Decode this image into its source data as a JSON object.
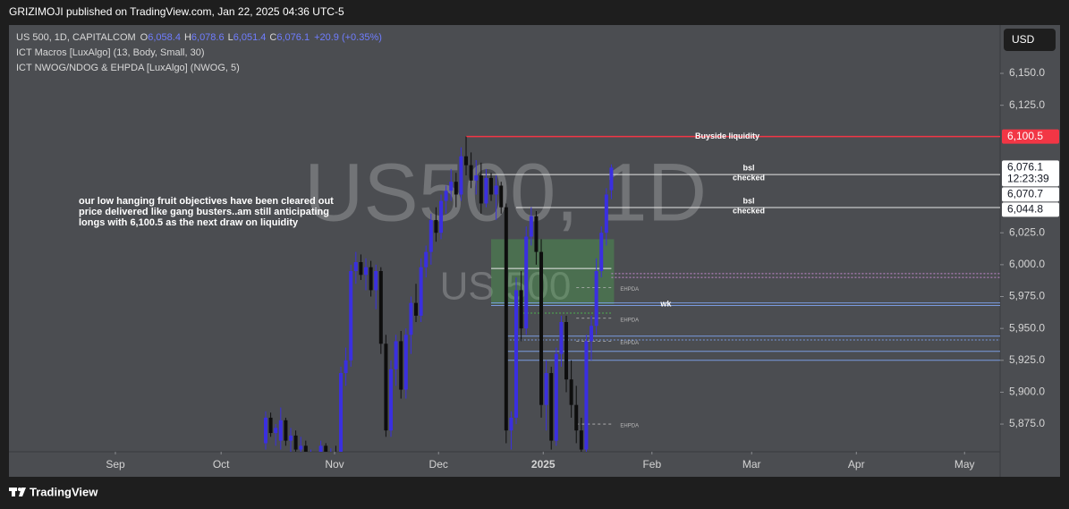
{
  "header": {
    "published": "GRIZIMOJI published on TradingView.com, Jan 22, 2025 04:36 UTC-5"
  },
  "legend": {
    "symbol": "US 500, 1D, CAPITALCOM",
    "o_label": "O",
    "o": "6,058.4",
    "h_label": "H",
    "h": "6,078.6",
    "l_label": "L",
    "l": "6,051.4",
    "c_label": "C",
    "c": "6,076.1",
    "change": "+20.9 (+0.35%)",
    "indicators": [
      "ICT Macros [LuxAlgo] (13, Body, Small, 30)",
      "ICT NWOG/NDOG & EHPDA [LuxAlgo] (NWOG, 5)"
    ]
  },
  "currency": "USD",
  "footer": {
    "brand": "TradingView"
  },
  "chart_data": {
    "type": "candlestick",
    "watermark": [
      "US500, 1D",
      "US 500"
    ],
    "up_color": "#3a2fe0",
    "down_color": "#0e0e0e",
    "ohlc": [
      [
        5860,
        5885,
        5855,
        5880
      ],
      [
        5880,
        5884,
        5865,
        5868
      ],
      [
        5868,
        5875,
        5858,
        5872
      ],
      [
        5862,
        5888,
        5855,
        5878
      ],
      [
        5878,
        5880,
        5858,
        5862
      ],
      [
        5862,
        5872,
        5850,
        5866
      ],
      [
        5866,
        5870,
        5848,
        5855
      ],
      [
        5855,
        5865,
        5845,
        5858
      ],
      [
        5858,
        5862,
        5840,
        5845
      ],
      [
        5845,
        5855,
        5838,
        5850
      ],
      [
        5850,
        5852,
        5835,
        5840
      ],
      [
        5840,
        5862,
        5836,
        5858
      ],
      [
        5858,
        5860,
        5842,
        5848
      ],
      [
        5848,
        5856,
        5840,
        5852
      ],
      [
        5852,
        5858,
        5845,
        5850
      ],
      [
        5850,
        5920,
        5848,
        5915
      ],
      [
        5915,
        5935,
        5905,
        5925
      ],
      [
        5925,
        6000,
        5920,
        5995
      ],
      [
        5995,
        6010,
        5985,
        6002
      ],
      [
        6002,
        6008,
        5988,
        5992
      ],
      [
        5992,
        6005,
        5980,
        5998
      ],
      [
        5998,
        6003,
        5975,
        5980
      ],
      [
        5980,
        6000,
        5965,
        5995
      ],
      [
        5995,
        5998,
        5930,
        5938
      ],
      [
        5938,
        5945,
        5865,
        5870
      ],
      [
        5870,
        5925,
        5865,
        5918
      ],
      [
        5918,
        5945,
        5905,
        5940
      ],
      [
        5940,
        5948,
        5895,
        5902
      ],
      [
        5902,
        5950,
        5895,
        5945
      ],
      [
        5945,
        5975,
        5930,
        5970
      ],
      [
        5970,
        5985,
        5955,
        5960
      ],
      [
        5960,
        6005,
        5955,
        5998
      ],
      [
        5998,
        6015,
        5990,
        6010
      ],
      [
        6010,
        6040,
        6000,
        6035
      ],
      [
        6035,
        6045,
        6018,
        6025
      ],
      [
        6025,
        6055,
        6020,
        6050
      ],
      [
        6050,
        6062,
        6040,
        6058
      ],
      [
        6058,
        6075,
        6050,
        6065
      ],
      [
        6065,
        6072,
        6045,
        6055
      ],
      [
        6055,
        6092,
        6050,
        6085
      ],
      [
        6085,
        6100.5,
        6070,
        6078
      ],
      [
        6078,
        6088,
        6060,
        6066
      ],
      [
        6066,
        6082,
        6055,
        6070
      ],
      [
        6070,
        6080,
        6040,
        6048
      ],
      [
        6048,
        6075,
        6045,
        6068
      ],
      [
        6068,
        6072,
        6050,
        6055
      ],
      [
        6055,
        6070,
        6035,
        6062
      ],
      [
        6062,
        6065,
        6040,
        6045
      ],
      [
        6045,
        6048,
        5860,
        5870
      ],
      [
        5870,
        5885,
        5855,
        5880
      ],
      [
        5880,
        5990,
        5875,
        5980
      ],
      [
        5980,
        5995,
        5940,
        5950
      ],
      [
        5950,
        6030,
        5945,
        6022
      ],
      [
        6022,
        6045,
        6015,
        6038
      ],
      [
        6038,
        6042,
        6000,
        6010
      ],
      [
        6010,
        6020,
        5880,
        5890
      ],
      [
        5890,
        5925,
        5870,
        5915
      ],
      [
        5915,
        5920,
        5855,
        5862
      ],
      [
        5862,
        5935,
        5858,
        5930
      ],
      [
        5930,
        5960,
        5920,
        5955
      ],
      [
        5955,
        5960,
        5900,
        5910
      ],
      [
        5910,
        5925,
        5880,
        5890
      ],
      [
        5890,
        5905,
        5860,
        5870
      ],
      [
        5870,
        5880,
        5850,
        5855
      ],
      [
        5855,
        5945,
        5850,
        5940
      ],
      [
        5940,
        5960,
        5925,
        5952
      ],
      [
        5952,
        6005,
        5945,
        5995
      ],
      [
        5995,
        6030,
        5990,
        6025
      ],
      [
        6025,
        6060,
        6015,
        6055
      ],
      [
        6058.4,
        6078.6,
        6051.4,
        6076.1
      ]
    ],
    "xlim": [
      -51.25,
      146.6
    ],
    "xticks": [
      {
        "value": -30,
        "label": "Sep"
      },
      {
        "value": -8.9,
        "label": "Oct"
      },
      {
        "value": 13.75,
        "label": "Nov"
      },
      {
        "value": 34.5,
        "label": "Dec"
      },
      {
        "value": 55.4,
        "label": "2025"
      },
      {
        "value": 77.1,
        "label": "Feb"
      },
      {
        "value": 97,
        "label": "Mar"
      },
      {
        "value": 117.9,
        "label": "Apr"
      },
      {
        "value": 139.5,
        "label": "May"
      }
    ],
    "ylim": [
      5853.3,
      6186.5
    ],
    "yticks": [
      {
        "value": 5875,
        "label": "5,875.0"
      },
      {
        "value": 5900,
        "label": "5,900.0"
      },
      {
        "value": 5925,
        "label": "5,925.0"
      },
      {
        "value": 5950,
        "label": "5,950.0"
      },
      {
        "value": 5975,
        "label": "5,975.0"
      },
      {
        "value": 6000,
        "label": "6,000.0"
      },
      {
        "value": 6025,
        "label": "6,025.0"
      },
      {
        "value": 6125,
        "label": "6,125.0"
      },
      {
        "value": 6150,
        "label": "6,150.0"
      }
    ],
    "zone": {
      "low": 5969,
      "high": 6020,
      "from": 45,
      "to": 69,
      "color": "#4caf50"
    },
    "levels": [
      {
        "value": 6100.5,
        "color": "#f23645",
        "from": 40,
        "label": [
          "Buyside liquidity"
        ]
      },
      {
        "value": 6070.7,
        "color": "#e6e6e6",
        "from": 43,
        "label": [
          "bsl",
          "checked"
        ]
      },
      {
        "value": 6044.8,
        "color": "#e6e6e6",
        "from": 50,
        "label": [
          "bsl",
          "checked"
        ]
      },
      {
        "value": 5997,
        "color": "#e6e6e6",
        "from": 45,
        "to": 69
      },
      {
        "value": 5993,
        "color": "#c58ad0",
        "from": 69,
        "dash": true
      },
      {
        "value": 5990,
        "color": "#c58ad0",
        "from": 69,
        "dash": true
      },
      {
        "value": 5970,
        "color": "#7a9be0",
        "from": 45
      },
      {
        "value": 5968,
        "color": "#7a9be0",
        "from": 45
      },
      {
        "value": 5962,
        "color": "#4caf50",
        "from": 50,
        "to": 69,
        "dash": true,
        "label": [
          "wk"
        ]
      },
      {
        "value": 5944,
        "color": "#7a9be0",
        "from": 48
      },
      {
        "value": 5941,
        "color": "#7a9be0",
        "from": 48,
        "dash": true
      },
      {
        "value": 5932,
        "color": "#7a9be0",
        "from": 48
      },
      {
        "value": 5925,
        "color": "#7a9be0",
        "from": 48
      }
    ],
    "ehpda_label": "EHPDA",
    "ehpda": [
      5982,
      5958,
      5940,
      5875
    ],
    "price_labels": [
      {
        "value": 6100.5,
        "label": "6,100.5",
        "bg": "#f23645",
        "fg": "#ffffff"
      },
      {
        "value": 6076.1,
        "label": "6,076.1",
        "bg": "#ffffff",
        "fg": "#131722"
      },
      {
        "value": 6070.7,
        "label": "6,070.7",
        "bg": "#ffffff",
        "fg": "#131722"
      },
      {
        "value": 6044.8,
        "label": "6,044.8",
        "bg": "#ffffff",
        "fg": "#131722"
      }
    ],
    "countdown": "12:23:39",
    "note": [
      "our low hanging fruit objectives have been cleared out",
      "price delivered like gang busters..am still anticipating",
      "longs with 6,100.5 as the next draw on liquidity"
    ]
  }
}
